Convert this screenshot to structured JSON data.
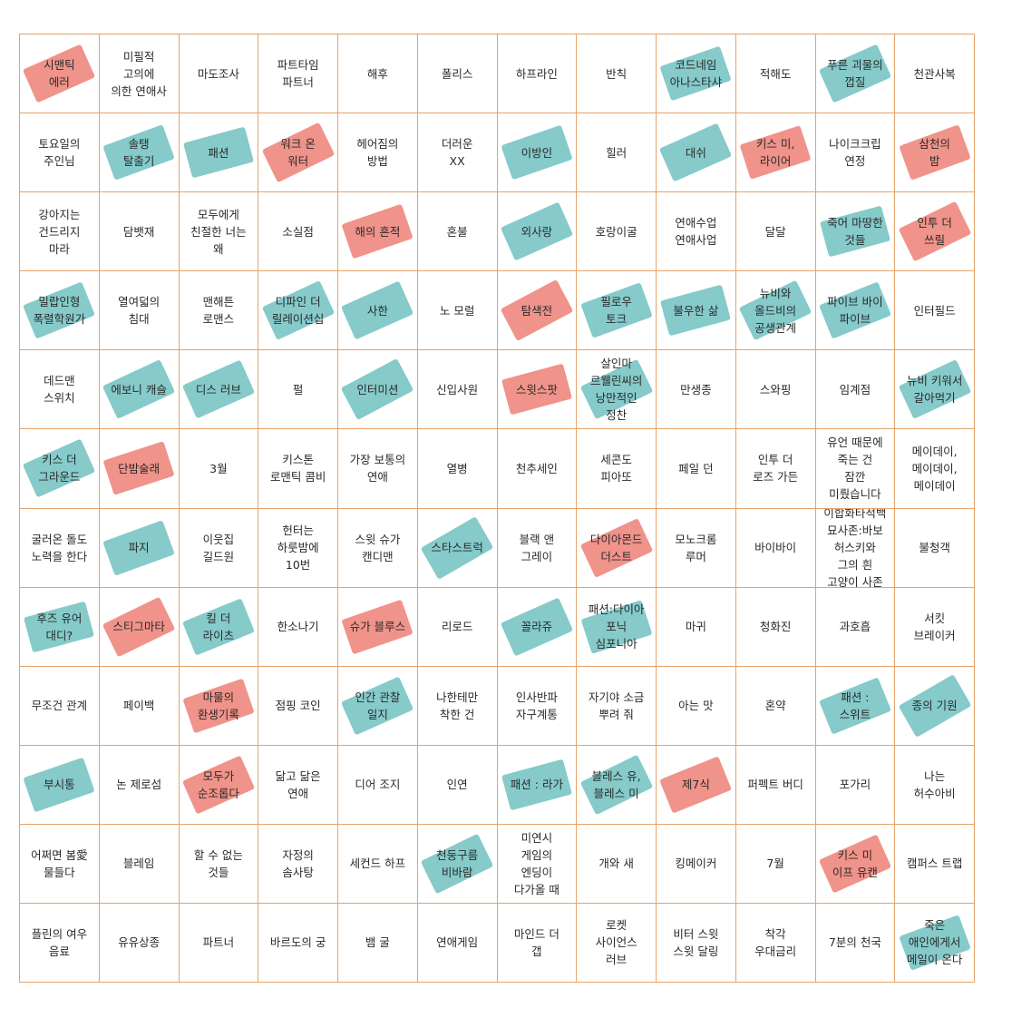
{
  "colors": {
    "grid_line": "#e6a36a",
    "tape_red": "#ef8a80",
    "tape_teal": "#7cc6c5"
  },
  "cells": [
    {
      "text": "시맨틱\n에러",
      "tape": "red"
    },
    {
      "text": "미필적\n고의에\n의한 연애사",
      "tape": null
    },
    {
      "text": "마도조사",
      "tape": null
    },
    {
      "text": "파트타임\n파트너",
      "tape": null
    },
    {
      "text": "해후",
      "tape": null
    },
    {
      "text": "폴리스",
      "tape": null
    },
    {
      "text": "하프라인",
      "tape": null
    },
    {
      "text": "반칙",
      "tape": null
    },
    {
      "text": "코드네임\n아나스타샤",
      "tape": "teal"
    },
    {
      "text": "적해도",
      "tape": null
    },
    {
      "text": "푸른 괴물의\n껍질",
      "tape": "teal"
    },
    {
      "text": "천관사복",
      "tape": null
    },
    {
      "text": "토요일의\n주인님",
      "tape": null
    },
    {
      "text": "솔탱\n탈출기",
      "tape": "teal"
    },
    {
      "text": "패션",
      "tape": "teal"
    },
    {
      "text": "워크 온\n워터",
      "tape": "red"
    },
    {
      "text": "헤어짐의\n방법",
      "tape": null
    },
    {
      "text": "더러운\nXX",
      "tape": null
    },
    {
      "text": "이방인",
      "tape": "teal"
    },
    {
      "text": "힐러",
      "tape": null
    },
    {
      "text": "대쉬",
      "tape": "teal"
    },
    {
      "text": "키스 미,\n라이어",
      "tape": "red"
    },
    {
      "text": "나이크크립\n연정",
      "tape": null
    },
    {
      "text": "삼천의\n밤",
      "tape": "red"
    },
    {
      "text": "강아지는\n건드리지\n마라",
      "tape": null
    },
    {
      "text": "담뱃재",
      "tape": null
    },
    {
      "text": "모두에게\n친절한 너는\n왜",
      "tape": null
    },
    {
      "text": "소실점",
      "tape": null
    },
    {
      "text": "해의 흔적",
      "tape": "red"
    },
    {
      "text": "혼불",
      "tape": null
    },
    {
      "text": "외사랑",
      "tape": "teal"
    },
    {
      "text": "호랑이굴",
      "tape": null
    },
    {
      "text": "연애수업\n연애사업",
      "tape": null
    },
    {
      "text": "달달",
      "tape": null
    },
    {
      "text": "죽어 마땅한\n것들",
      "tape": "teal"
    },
    {
      "text": "인투 더\n쓰릴",
      "tape": "red"
    },
    {
      "text": "밀랍인형\n폭렬학원가",
      "tape": "teal"
    },
    {
      "text": "열여덟의\n침대",
      "tape": null
    },
    {
      "text": "맨해튼\n로맨스",
      "tape": null
    },
    {
      "text": "디파인 더\n릴레이션십",
      "tape": "teal"
    },
    {
      "text": "사한",
      "tape": "teal"
    },
    {
      "text": "노 모럴",
      "tape": null
    },
    {
      "text": "탐색전",
      "tape": "red"
    },
    {
      "text": "필로우\n토크",
      "tape": "teal"
    },
    {
      "text": "불우한 삶",
      "tape": "teal"
    },
    {
      "text": "뉴비와\n올드비의\n공생관계",
      "tape": "teal"
    },
    {
      "text": "파이브 바이\n파이브",
      "tape": "teal"
    },
    {
      "text": "인터필드",
      "tape": null
    },
    {
      "text": "데드맨\n스위치",
      "tape": null
    },
    {
      "text": "에보니 캐슬",
      "tape": "teal"
    },
    {
      "text": "디스 러브",
      "tape": "teal"
    },
    {
      "text": "펄",
      "tape": null
    },
    {
      "text": "인터미션",
      "tape": "teal"
    },
    {
      "text": "신입사원",
      "tape": null
    },
    {
      "text": "스윗스팟",
      "tape": "red"
    },
    {
      "text": "살인마\n르웰린씨의\n낭만적인\n정찬",
      "tape": "teal"
    },
    {
      "text": "만생종",
      "tape": null
    },
    {
      "text": "스와핑",
      "tape": null
    },
    {
      "text": "임계점",
      "tape": null
    },
    {
      "text": "뉴비 키워서\n갈아먹기",
      "tape": "teal"
    },
    {
      "text": "키스 더\n그라운드",
      "tape": "teal"
    },
    {
      "text": "단밤술래",
      "tape": "red"
    },
    {
      "text": "3월",
      "tape": null
    },
    {
      "text": "키스톤\n로맨틱 콤비",
      "tape": null
    },
    {
      "text": "가장 보통의\n연애",
      "tape": null
    },
    {
      "text": "열병",
      "tape": null
    },
    {
      "text": "천추세인",
      "tape": null
    },
    {
      "text": "세콘도\n피아또",
      "tape": null
    },
    {
      "text": "페일 던",
      "tape": null
    },
    {
      "text": "인투 더\n로즈 가든",
      "tape": null
    },
    {
      "text": "유언 때문에\n죽는 건\n잠깐\n미뤘습니다",
      "tape": null
    },
    {
      "text": "메이데이,\n메이데이,\n메이데이",
      "tape": null
    },
    {
      "text": "굴러온 돌도\n노력을 한다",
      "tape": null
    },
    {
      "text": "파지",
      "tape": "teal"
    },
    {
      "text": "이웃집\n길드원",
      "tape": null
    },
    {
      "text": "헌터는\n하룻밤에\n10번",
      "tape": null
    },
    {
      "text": "스윗 슈가\n캔디맨",
      "tape": null
    },
    {
      "text": "스타스트럭",
      "tape": "teal"
    },
    {
      "text": "블랙 앤\n그레이",
      "tape": null
    },
    {
      "text": "다이아몬드\n더스트",
      "tape": "red"
    },
    {
      "text": "모노크롬\n루머",
      "tape": null
    },
    {
      "text": "바이바이",
      "tape": null
    },
    {
      "text": "이합화타적백\n묘사존:바보\n허스키와\n그의 흰\n고양이 사존",
      "tape": null
    },
    {
      "text": "불청객",
      "tape": null
    },
    {
      "text": "후즈 유어\n대디?",
      "tape": "teal"
    },
    {
      "text": "스티그마타",
      "tape": "red"
    },
    {
      "text": "킬 더\n라이츠",
      "tape": "teal"
    },
    {
      "text": "한소나기",
      "tape": null
    },
    {
      "text": "슈가 블루스",
      "tape": "red"
    },
    {
      "text": "리로드",
      "tape": null
    },
    {
      "text": "꼴라쥬",
      "tape": "teal"
    },
    {
      "text": "패션:다이아\n포닉\n심포니아",
      "tape": "teal"
    },
    {
      "text": "마귀",
      "tape": null
    },
    {
      "text": "청화진",
      "tape": null
    },
    {
      "text": "과호흡",
      "tape": null
    },
    {
      "text": "서킷\n브레이커",
      "tape": null
    },
    {
      "text": "무조건 관계",
      "tape": null
    },
    {
      "text": "페이백",
      "tape": null
    },
    {
      "text": "마물의\n환생기록",
      "tape": "red"
    },
    {
      "text": "점핑 코인",
      "tape": null
    },
    {
      "text": "인간 관찰\n일지",
      "tape": "teal"
    },
    {
      "text": "나한테만\n착한 건",
      "tape": null
    },
    {
      "text": "인사반파\n자구계통",
      "tape": null
    },
    {
      "text": "자기야 소금\n뿌려 줘",
      "tape": null
    },
    {
      "text": "아는 맛",
      "tape": null
    },
    {
      "text": "혼약",
      "tape": null
    },
    {
      "text": "패션 :\n스위트",
      "tape": "teal"
    },
    {
      "text": "종의 기원",
      "tape": "teal"
    },
    {
      "text": "부시통",
      "tape": "teal"
    },
    {
      "text": "논 제로섬",
      "tape": null
    },
    {
      "text": "모두가\n순조롭다",
      "tape": "red"
    },
    {
      "text": "닮고 닮은\n연애",
      "tape": null
    },
    {
      "text": "디어 조지",
      "tape": null
    },
    {
      "text": "인연",
      "tape": null
    },
    {
      "text": "패션 : 라가",
      "tape": "teal"
    },
    {
      "text": "블레스 유,\n블레스 미",
      "tape": "teal"
    },
    {
      "text": "제7식",
      "tape": "red"
    },
    {
      "text": "퍼펙트 버디",
      "tape": null
    },
    {
      "text": "포가리",
      "tape": null
    },
    {
      "text": "나는\n허수아비",
      "tape": null
    },
    {
      "text": "어쩌면 봄愛\n물들다",
      "tape": null
    },
    {
      "text": "블레임",
      "tape": null
    },
    {
      "text": "할 수 없는\n것들",
      "tape": null
    },
    {
      "text": "자정의\n솜사탕",
      "tape": null
    },
    {
      "text": "세컨드 하프",
      "tape": null
    },
    {
      "text": "천둥구름\n비바람",
      "tape": "teal"
    },
    {
      "text": "미연시\n게임의\n엔딩이\n다가올 때",
      "tape": null
    },
    {
      "text": "개와 새",
      "tape": null
    },
    {
      "text": "킹메이커",
      "tape": null
    },
    {
      "text": "7월",
      "tape": null
    },
    {
      "text": "키스 미\n이프 유캔",
      "tape": "red"
    },
    {
      "text": "캠퍼스 트랩",
      "tape": null
    },
    {
      "text": "플린의 여우\n음료",
      "tape": null
    },
    {
      "text": "유유상종",
      "tape": null
    },
    {
      "text": "파트너",
      "tape": null
    },
    {
      "text": "바르도의 궁",
      "tape": null
    },
    {
      "text": "뱀 굴",
      "tape": null
    },
    {
      "text": "연애게임",
      "tape": null
    },
    {
      "text": "마인드 더\n갭",
      "tape": null
    },
    {
      "text": "로켓\n사이언스\n러브",
      "tape": null
    },
    {
      "text": "비터 스윗\n스윗 달링",
      "tape": null
    },
    {
      "text": "착각\n우대금리",
      "tape": null
    },
    {
      "text": "7분의 천국",
      "tape": null
    },
    {
      "text": "죽은\n애인에게서\n메일이 온다",
      "tape": "teal"
    }
  ]
}
